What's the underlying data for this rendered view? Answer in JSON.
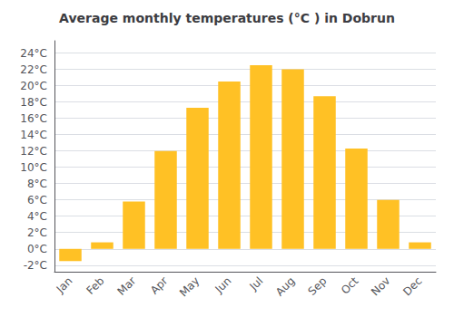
{
  "chart_data": {
    "type": "bar",
    "title": "Average monthly temperatures (°C ) in Dobrun",
    "categories": [
      "Jan",
      "Feb",
      "Mar",
      "Apr",
      "May",
      "Jun",
      "Jul",
      "Aug",
      "Sep",
      "Oct",
      "Nov",
      "Dec"
    ],
    "values": [
      -1.5,
      0.8,
      5.8,
      12.0,
      17.3,
      20.5,
      22.5,
      22.0,
      18.7,
      12.3,
      6.0,
      0.8
    ],
    "color": "#FFC125",
    "ylim": [
      -2.8,
      25.5
    ],
    "yticks": [
      {
        "value": -2,
        "label": "-2°C"
      },
      {
        "value": 0,
        "label": "0°C"
      },
      {
        "value": 2,
        "label": "2°C"
      },
      {
        "value": 4,
        "label": "4°C"
      },
      {
        "value": 6,
        "label": "6°C"
      },
      {
        "value": 8,
        "label": "8°C"
      },
      {
        "value": 10,
        "label": "10°C"
      },
      {
        "value": 12,
        "label": "12°C"
      },
      {
        "value": 14,
        "label": "14°C"
      },
      {
        "value": 16,
        "label": "16°C"
      },
      {
        "value": 18,
        "label": "18°C"
      },
      {
        "value": 20,
        "label": "20°C"
      },
      {
        "value": 22,
        "label": "22°C"
      },
      {
        "value": 24,
        "label": "24°C"
      }
    ],
    "grid": true
  }
}
